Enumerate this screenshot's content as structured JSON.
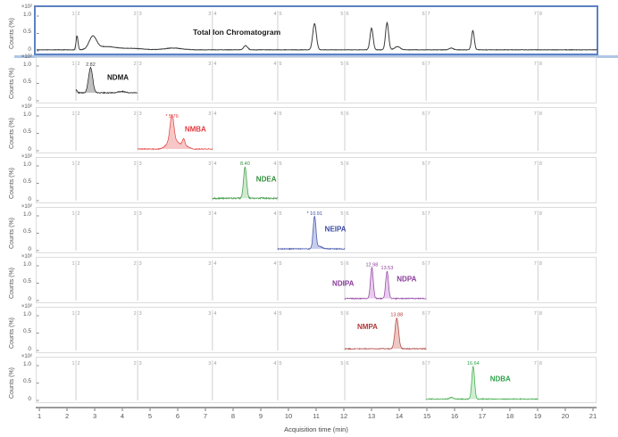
{
  "chart_data": {
    "type": "line",
    "title": "Total Ion Chromatogram",
    "xlabel": "Acquisition time (min)",
    "ylabel": "Counts (%)",
    "y_exponent": "×10²",
    "xlim": [
      0.87,
      21.13
    ],
    "ylim": [
      0,
      1.23
    ],
    "x_ticks": [
      1,
      2,
      3,
      4,
      5,
      6,
      7,
      8,
      9,
      10,
      11,
      12,
      13,
      14,
      15,
      16,
      17,
      18,
      19,
      20,
      21
    ],
    "y_ticks": [
      {
        "v": 1.0,
        "label": "1.0"
      },
      {
        "v": 0.5,
        "label": "0.5"
      },
      {
        "v": 0,
        "label": "0"
      }
    ],
    "grid": "segment-boundaries-only",
    "legend": "none",
    "segment_boundaries": [
      {
        "t": 2.29,
        "left": "1",
        "right": "2"
      },
      {
        "t": 4.52,
        "left": "2",
        "right": "3"
      },
      {
        "t": 7.22,
        "left": "3",
        "right": "4"
      },
      {
        "t": 9.58,
        "left": "4",
        "right": "5"
      },
      {
        "t": 12.0,
        "left": "5",
        "right": "6"
      },
      {
        "t": 14.94,
        "left": "6",
        "right": "7"
      },
      {
        "t": 18.98,
        "left": "7",
        "right": "8"
      }
    ],
    "panels": [
      {
        "id": "tic",
        "compound": "Total Ion Chromatogram",
        "selected": true,
        "color": "#3c3c3c",
        "fill": "none",
        "line_width": 1,
        "range": [
          0.87,
          21.13
        ],
        "baseline": 0.03,
        "noise": 0.006,
        "peaks": [
          {
            "rt": 2.33,
            "h": 0.4,
            "w": 0.035
          },
          {
            "rt": 2.9,
            "h": 0.36,
            "w": 0.13
          },
          {
            "rt": 3.35,
            "h": 0.09,
            "w": 0.35
          },
          {
            "rt": 4.3,
            "h": 0.04,
            "w": 0.4
          },
          {
            "rt": 5.8,
            "h": 0.05,
            "w": 0.3
          },
          {
            "rt": 8.42,
            "h": 0.12,
            "w": 0.07
          },
          {
            "rt": 10.91,
            "h": 0.75,
            "w": 0.065
          },
          {
            "rt": 12.97,
            "h": 0.62,
            "w": 0.055
          },
          {
            "rt": 13.53,
            "h": 0.78,
            "w": 0.055
          },
          {
            "rt": 13.9,
            "h": 0.09,
            "w": 0.1
          },
          {
            "rt": 15.85,
            "h": 0.05,
            "w": 0.07
          },
          {
            "rt": 16.63,
            "h": 0.55,
            "w": 0.05
          }
        ],
        "annotations": [
          {
            "text": "Total Ion Chromatogram",
            "t": 8.1,
            "v": 0.46,
            "anchor": "middle",
            "color": "#1a1a1a",
            "size": 8.5,
            "bold": true
          }
        ]
      },
      {
        "id": "ndma",
        "compound": "NDMA",
        "selected": false,
        "color": "#2f2f2f",
        "fill": "rgba(140,140,140,0.55)",
        "line_width": 0.8,
        "range": [
          2.29,
          4.52
        ],
        "baseline": 0.23,
        "noise": 0.013,
        "peaks": [
          {
            "rt": 2.31,
            "h": 0.09,
            "w": 0.025
          },
          {
            "rt": 2.82,
            "h": 0.72,
            "w": 0.075,
            "label": "2.82",
            "label_color": "#3a3a3a"
          },
          {
            "rt": 3.95,
            "h": 0.04,
            "w": 0.12
          }
        ],
        "annotations": [
          {
            "text": "NDMA",
            "t": 3.42,
            "v": 0.6,
            "anchor": "start",
            "color": "#151515",
            "size": 8,
            "bold": true
          }
        ]
      },
      {
        "id": "nmba",
        "compound": "NMBA",
        "selected": false,
        "color": "#e5524f",
        "fill": "rgba(238,130,130,0.45)",
        "line_width": 0.8,
        "range": [
          4.52,
          7.22
        ],
        "baseline": 0.05,
        "noise": 0.012,
        "peaks": [
          {
            "rt": 5.62,
            "h": 0.14,
            "w": 0.12
          },
          {
            "rt": 5.76,
            "h": 0.85,
            "w": 0.07,
            "label": "* 5.76",
            "label_color": "#e03a3f"
          },
          {
            "rt": 5.95,
            "h": 0.2,
            "w": 0.13
          },
          {
            "rt": 6.18,
            "h": 0.24,
            "w": 0.05
          },
          {
            "rt": 6.32,
            "h": 0.07,
            "w": 0.08
          }
        ],
        "annotations": [
          {
            "text": "NMBA",
            "t": 6.22,
            "v": 0.55,
            "anchor": "start",
            "color": "#e03a3f",
            "size": 8,
            "bold": true
          }
        ]
      },
      {
        "id": "ndea",
        "compound": "NDEA",
        "selected": false,
        "color": "#4aa04f",
        "fill": "rgba(130,200,135,0.40)",
        "line_width": 0.8,
        "range": [
          7.22,
          9.58
        ],
        "baseline": 0.07,
        "noise": 0.02,
        "peaks": [
          {
            "rt": 8.4,
            "h": 0.9,
            "w": 0.055,
            "label": "8.40",
            "label_color": "#2f8f3a"
          }
        ],
        "annotations": [
          {
            "text": "NDEA",
            "t": 8.8,
            "v": 0.55,
            "anchor": "start",
            "color": "#2f8f3a",
            "size": 8,
            "bold": true
          }
        ]
      },
      {
        "id": "neipa",
        "compound": "NEIPA",
        "selected": false,
        "color": "#4b5aad",
        "fill": "rgba(130,145,215,0.45)",
        "line_width": 0.8,
        "range": [
          9.58,
          12.0
        ],
        "baseline": 0.05,
        "noise": 0.012,
        "peaks": [
          {
            "rt": 10.91,
            "h": 0.93,
            "w": 0.05,
            "label": "* 10.91",
            "label_color": "#3a4aa0"
          },
          {
            "rt": 11.08,
            "h": 0.07,
            "w": 0.1
          }
        ],
        "annotations": [
          {
            "text": "NEIPA",
            "t": 11.28,
            "v": 0.55,
            "anchor": "start",
            "color": "#3a4aa0",
            "size": 8,
            "bold": true
          }
        ]
      },
      {
        "id": "ndipa-ndpa",
        "compound": "NDIPA / NDPA",
        "selected": false,
        "color": "#9a4fa8",
        "fill": "rgba(195,130,210,0.40)",
        "line_width": 0.8,
        "range": [
          12.0,
          14.94
        ],
        "baseline": 0.06,
        "noise": 0.014,
        "peaks": [
          {
            "rt": 12.98,
            "h": 0.88,
            "w": 0.05,
            "label": "12.98",
            "label_color": "#8a3a9a"
          },
          {
            "rt": 13.53,
            "h": 0.78,
            "w": 0.05,
            "label": "13.53",
            "label_color": "#8a3a9a"
          }
        ],
        "annotations": [
          {
            "text": "NDIPA",
            "t": 11.55,
            "v": 0.42,
            "anchor": "start",
            "color": "#8a3a9a",
            "size": 8,
            "bold": true
          },
          {
            "text": "NDPA",
            "t": 13.88,
            "v": 0.55,
            "anchor": "start",
            "color": "#8a3a9a",
            "size": 8,
            "bold": true
          }
        ]
      },
      {
        "id": "nmpa",
        "compound": "NMPA",
        "selected": false,
        "color": "#b5524e",
        "fill": "rgba(215,130,125,0.45)",
        "line_width": 0.8,
        "range": [
          12.0,
          14.94
        ],
        "baseline": 0.05,
        "noise": 0.012,
        "peaks": [
          {
            "rt": 13.88,
            "h": 0.88,
            "w": 0.065,
            "label": "13.88",
            "label_color": "#b03a38"
          }
        ],
        "annotations": [
          {
            "text": "NMPA",
            "t": 12.45,
            "v": 0.62,
            "anchor": "start",
            "color": "#b03a38",
            "size": 8,
            "bold": true
          }
        ]
      },
      {
        "id": "ndba",
        "compound": "NDBA",
        "selected": false,
        "color": "#4bb054",
        "fill": "rgba(130,215,140,0.40)",
        "line_width": 0.8,
        "range": [
          14.94,
          18.98
        ],
        "baseline": 0.04,
        "noise": 0.012,
        "peaks": [
          {
            "rt": 15.85,
            "h": 0.05,
            "w": 0.06
          },
          {
            "rt": 16.64,
            "h": 0.94,
            "w": 0.05,
            "label": "16.64",
            "label_color": "#2fa24a"
          }
        ],
        "annotations": [
          {
            "text": "NDBA",
            "t": 17.25,
            "v": 0.55,
            "anchor": "start",
            "color": "#2fa24a",
            "size": 8,
            "bold": true
          }
        ]
      }
    ],
    "style_colors": {
      "selected_border": "#5c82c2",
      "selected_underline": "#b0c6e6",
      "gridline": "#cfcfcf",
      "segment_label": "#a0a0a0",
      "axis_line": "#9b9b9b",
      "tick_text": "#555555"
    }
  }
}
